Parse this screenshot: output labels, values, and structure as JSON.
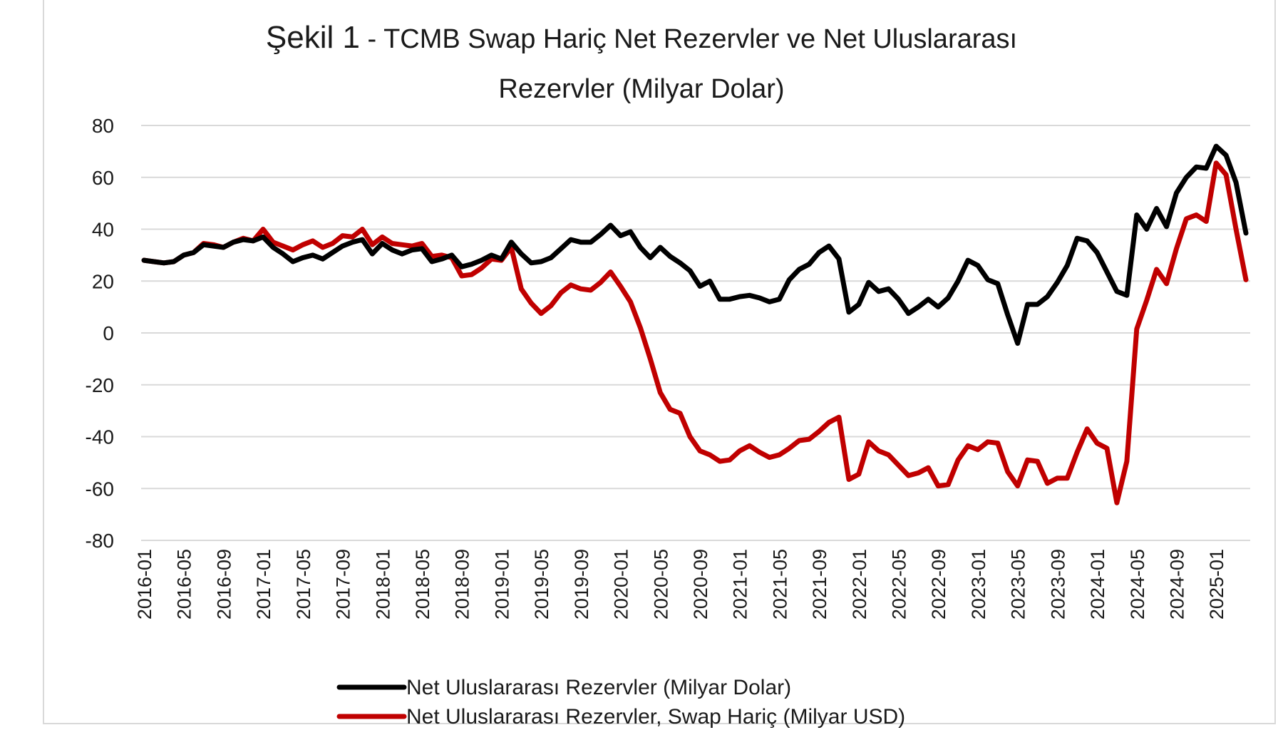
{
  "chart_data": {
    "type": "line",
    "title_prefix": "Şekil  1",
    "title_line1": " - TCMB Swap Hariç Net Rezervler ve Net Uluslararası",
    "title_line2": "Rezervler (Milyar Dolar)",
    "ylim": [
      -80,
      80
    ],
    "yticks": [
      80,
      60,
      40,
      20,
      0,
      -20,
      -40,
      -60,
      -80
    ],
    "xticks": [
      "2016-01",
      "2016-05",
      "2016-09",
      "2017-01",
      "2017-05",
      "2017-09",
      "2018-01",
      "2018-05",
      "2018-09",
      "2019-01",
      "2019-05",
      "2019-09",
      "2020-01",
      "2020-05",
      "2020-09",
      "2021-01",
      "2021-05",
      "2021-09",
      "2022-01",
      "2022-05",
      "2022-09",
      "2023-01",
      "2023-05",
      "2023-09",
      "2024-01",
      "2024-05",
      "2024-09",
      "2025-01"
    ],
    "x_start": "2016-01",
    "grid": true,
    "legend_position": "bottom",
    "series": [
      {
        "name": "Net Uluslararası Rezervler (Milyar Dolar)",
        "color": "#000000",
        "values": [
          28,
          27.5,
          27,
          27.5,
          30,
          31,
          34,
          33.5,
          33,
          35,
          36,
          35.5,
          37,
          33,
          30.5,
          27.5,
          29,
          30,
          28.5,
          31,
          33.5,
          35,
          36,
          30.5,
          34.5,
          32,
          30.5,
          32,
          32.5,
          27.5,
          28.5,
          30,
          25.5,
          26.5,
          28,
          30,
          28.5,
          35,
          30.5,
          27,
          27.5,
          29,
          32.5,
          36,
          35,
          35,
          38,
          41.5,
          37.5,
          39,
          33,
          29,
          33,
          29.5,
          27,
          24,
          18,
          20,
          13,
          13,
          14,
          14.5,
          13.5,
          12,
          13,
          20.5,
          24.5,
          26.5,
          31,
          33.5,
          28.5,
          8,
          11,
          19.5,
          16,
          17,
          13,
          7.5,
          10,
          13,
          10,
          13.5,
          20,
          28,
          26,
          20.5,
          19,
          7,
          -4,
          11,
          11,
          14,
          19.5,
          26,
          36.5,
          35.5,
          31,
          23.5,
          16,
          14.5,
          45.5,
          40,
          48,
          41,
          54,
          60,
          64,
          63.5,
          72,
          68.5,
          58,
          38.5
        ]
      },
      {
        "name": "Net Uluslararası Rezervler, Swap Hariç (Milyar USD)",
        "color": "#c00000",
        "values": [
          28,
          27.5,
          27,
          27.5,
          30,
          31,
          34.5,
          34,
          33,
          35,
          36.5,
          35.5,
          40,
          35,
          33.5,
          32,
          34,
          35.5,
          33,
          34.5,
          37.5,
          37,
          40,
          34,
          37,
          34.5,
          34,
          33.5,
          34.5,
          29.5,
          30,
          29,
          22,
          22.5,
          25,
          28.5,
          28,
          33,
          17,
          11.5,
          7.5,
          10.5,
          15.5,
          18.5,
          17,
          16.5,
          19.5,
          23.5,
          18,
          12,
          2,
          -10,
          -23,
          -29.5,
          -31,
          -40,
          -45.5,
          -47,
          -49.5,
          -49,
          -45.5,
          -43.5,
          -46,
          -48,
          -47,
          -44.5,
          -41.5,
          -41,
          -38,
          -34.5,
          -32.5,
          -56.5,
          -54.5,
          -42,
          -45.5,
          -47,
          -51,
          -55,
          -54,
          -52,
          -59,
          -58.5,
          -49,
          -43.5,
          -45,
          -42,
          -42.5,
          -53.5,
          -59,
          -49,
          -49.5,
          -58,
          -56,
          -56,
          -46,
          -37,
          -42.5,
          -44.5,
          -65.5,
          -49.5,
          1.5,
          12.5,
          24.5,
          19,
          32.5,
          44,
          45.5,
          43,
          65.5,
          61,
          40,
          20.5
        ]
      }
    ]
  }
}
